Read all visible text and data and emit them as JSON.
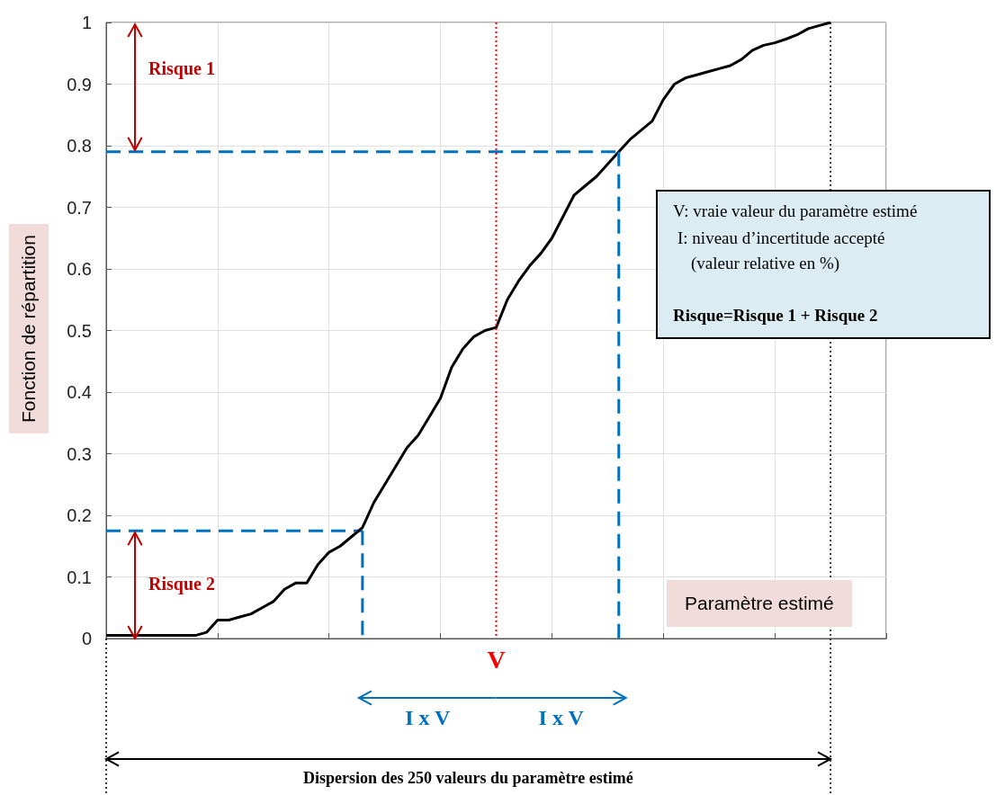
{
  "chart_data": {
    "type": "line",
    "xlabel": "Paramètre estimé",
    "ylabel": "Fonction de répartition",
    "categories": [
      null,
      null,
      null,
      null,
      null,
      null,
      null,
      null,
      null,
      null,
      null,
      null,
      null,
      null,
      null,
      null,
      null,
      null,
      null,
      null,
      null,
      null,
      null,
      null,
      null,
      null,
      null,
      null,
      null,
      null,
      null,
      null,
      null,
      null,
      null,
      null,
      null,
      null,
      null,
      null,
      null,
      null,
      null,
      null,
      null,
      null,
      null,
      null,
      null,
      null,
      null,
      null,
      null,
      null,
      null,
      null,
      null,
      null,
      null,
      null,
      null,
      null,
      null,
      null,
      null,
      null,
      null,
      null,
      null,
      null,
      null
    ],
    "ylim": [
      0,
      1
    ],
    "yticks": [
      0,
      0.1,
      0.2,
      0.3,
      0.4,
      0.5,
      0.6,
      0.7,
      0.8,
      0.9,
      1
    ],
    "tick_labels": "y",
    "grid": true,
    "marker": "none",
    "series": [
      {
        "color": "#000000",
        "values": [
          0.005,
          0.005,
          0.005,
          0.005,
          0.005,
          0.005,
          0.005,
          0.005,
          0.005,
          0.01,
          0.03,
          0.03,
          0.035,
          0.04,
          0.05,
          0.06,
          0.08,
          0.09,
          0.09,
          0.12,
          0.14,
          0.15,
          0.165,
          0.18,
          0.22,
          0.25,
          0.28,
          0.31,
          0.33,
          0.36,
          0.39,
          0.44,
          0.47,
          0.49,
          0.5,
          0.505,
          0.55,
          0.58,
          0.605,
          0.625,
          0.65,
          0.685,
          0.72,
          0.735,
          0.75,
          0.77,
          0.79,
          0.81,
          0.825,
          0.84,
          0.875,
          0.9,
          0.91,
          0.915,
          0.92,
          0.925,
          0.93,
          0.94,
          0.955,
          0.963,
          0.967,
          0.973,
          0.98,
          0.99,
          0.995,
          1,
          null,
          null,
          null,
          null,
          null
        ]
      },
      {
        "color": "#0070c0",
        "line_style": "dashed",
        "values": [
          0.79,
          0.79,
          0.79,
          0.79,
          0.79,
          0.79,
          0.79,
          0.79,
          0.79,
          0.79,
          0.79,
          0.79,
          0.79,
          0.79,
          0.79,
          0.79,
          0.79,
          0.79,
          0.79,
          0.79,
          0.79,
          0.79,
          0.79,
          0.79,
          0.79,
          0.79,
          0.79,
          0.79,
          0.79,
          0.79,
          0.79,
          0.79,
          0.79,
          0.79,
          0.79,
          0.79,
          0.79,
          0.79,
          0.79,
          0.79,
          0.79,
          0.79,
          0.79,
          0.79,
          0.79,
          0.79,
          0.79,
          null,
          null,
          null,
          null,
          null,
          null,
          null,
          null,
          null,
          null,
          null,
          null,
          null,
          null,
          null,
          null,
          null,
          null,
          null,
          null,
          null,
          null,
          null,
          null
        ]
      },
      {
        "color": "#0070c0",
        "line_style": "dashed",
        "values": [
          0.175,
          0.175,
          0.175,
          0.175,
          0.175,
          0.175,
          0.175,
          0.175,
          0.175,
          0.175,
          0.175,
          0.175,
          0.175,
          0.175,
          0.175,
          0.175,
          0.175,
          0.175,
          0.175,
          0.175,
          0.175,
          0.175,
          0.175,
          0.175,
          null,
          null,
          null,
          null,
          null,
          null,
          null,
          null,
          null,
          null,
          null,
          null,
          null,
          null,
          null,
          null,
          null,
          null,
          null,
          null,
          null,
          null,
          null,
          null,
          null,
          null,
          null,
          null,
          null,
          null,
          null,
          null,
          null,
          null,
          null,
          null,
          null,
          null,
          null,
          null,
          null,
          null,
          null,
          null,
          null,
          null,
          null
        ]
      }
    ],
    "annotations": [
      "Risque 1",
      "Risque 2",
      "V",
      "I x V",
      "I x V",
      "Dispersion des 250 valeurs du paramètre estimé",
      "V: vraie valeur du paramètre estimé",
      "I:  niveau d’incertitude accepté",
      "(valeur relative en %)",
      "Risque=Risque 1 + Risque 2"
    ]
  }
}
